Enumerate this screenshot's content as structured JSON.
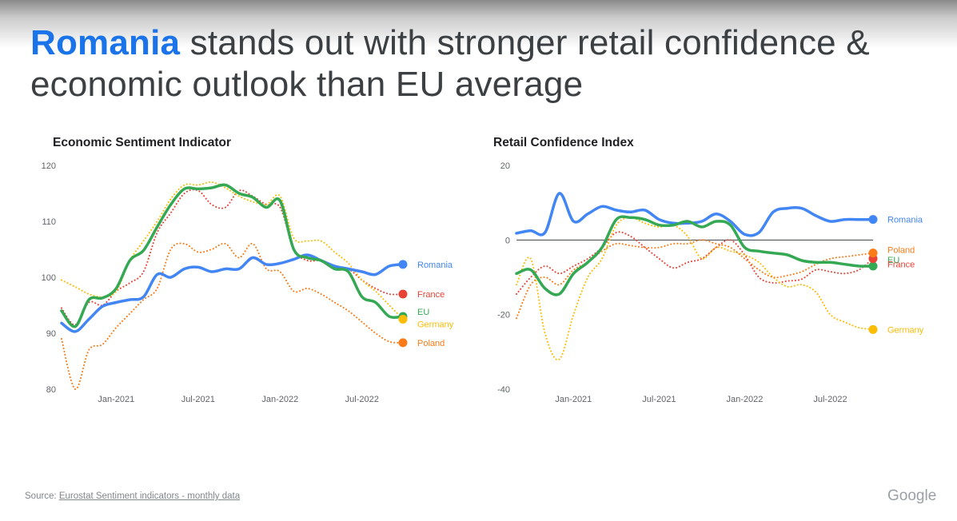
{
  "headline": {
    "accent": "Romania",
    "rest": " stands out with stronger retail confidence & economic outlook than EU average"
  },
  "footer": {
    "source_label": "Source: ",
    "source_link": "Eurostat Sentiment indicators - monthly data",
    "logo": "Google"
  },
  "chart_data": [
    {
      "type": "line",
      "title": "Economic Sentiment Indicator",
      "xlabel": "",
      "ylabel": "",
      "ylim": [
        80,
        120
      ],
      "yticks": [
        80,
        90,
        100,
        110,
        120
      ],
      "x": [
        "2020-09",
        "2020-10",
        "2020-11",
        "2020-12",
        "2021-01",
        "2021-02",
        "2021-03",
        "2021-04",
        "2021-05",
        "2021-06",
        "2021-07",
        "2021-08",
        "2021-09",
        "2021-10",
        "2021-11",
        "2021-12",
        "2022-01",
        "2022-02",
        "2022-03",
        "2022-04",
        "2022-05",
        "2022-06",
        "2022-07",
        "2022-08",
        "2022-09",
        "2022-10"
      ],
      "xtick_labels": [
        {
          "at": "2021-01",
          "label": "Jan-2021"
        },
        {
          "at": "2021-07",
          "label": "Jul-2021"
        },
        {
          "at": "2022-01",
          "label": "Jan-2022"
        },
        {
          "at": "2022-07",
          "label": "Jul-2022"
        }
      ],
      "series": [
        {
          "name": "Romania",
          "color": "#4285f4",
          "style": "solid",
          "values": [
            91.8,
            90.3,
            92.5,
            94.8,
            95.5,
            96.0,
            96.5,
            100.5,
            100.0,
            101.5,
            101.8,
            101.0,
            101.5,
            101.5,
            103.5,
            102.3,
            102.5,
            103.2,
            104.0,
            103.0,
            102.0,
            101.5,
            101.0,
            100.5,
            102.0,
            102.3
          ]
        },
        {
          "name": "EU",
          "color": "#34a853",
          "style": "solid",
          "values": [
            94.0,
            91.2,
            96.0,
            96.3,
            98.0,
            103.0,
            104.8,
            109.0,
            113.0,
            115.8,
            115.8,
            116.0,
            116.5,
            115.0,
            114.3,
            112.5,
            113.7,
            105.0,
            103.5,
            103.0,
            101.5,
            101.0,
            96.5,
            95.5,
            93.0,
            93.0
          ]
        },
        {
          "name": "France",
          "color": "#ea4335",
          "style": "dotted",
          "values": [
            94.5,
            91.5,
            95.5,
            95.0,
            97.5,
            99.0,
            101.0,
            108.0,
            111.5,
            115.0,
            115.5,
            113.0,
            112.5,
            115.5,
            114.5,
            113.0,
            112.5,
            105.0,
            103.0,
            103.0,
            102.0,
            101.5,
            99.5,
            98.0,
            97.0,
            97.0
          ]
        },
        {
          "name": "Germany",
          "color": "#fbbc04",
          "style": "dotted",
          "values": [
            99.5,
            98.3,
            97.0,
            96.5,
            97.5,
            103.0,
            106.5,
            110.0,
            114.0,
            116.5,
            116.5,
            117.0,
            116.0,
            114.5,
            113.5,
            113.0,
            114.5,
            107.0,
            106.5,
            106.5,
            104.5,
            102.5,
            99.5,
            97.5,
            95.0,
            92.5
          ]
        },
        {
          "name": "Poland",
          "color": "#fa7b17",
          "style": "dotted",
          "values": [
            89.0,
            80.0,
            87.0,
            88.0,
            91.0,
            93.5,
            96.0,
            98.0,
            105.0,
            106.0,
            104.5,
            105.0,
            106.0,
            103.5,
            106.0,
            101.5,
            101.0,
            97.5,
            98.0,
            97.0,
            95.5,
            94.0,
            92.0,
            90.0,
            88.5,
            88.3
          ]
        }
      ],
      "legend_placement": "right-end labels",
      "grid": false
    },
    {
      "type": "line",
      "title": "Retail Confidence Index",
      "xlabel": "",
      "ylabel": "",
      "ylim": [
        -40,
        20
      ],
      "yticks": [
        -40,
        -20,
        0,
        20
      ],
      "x": [
        "2020-09",
        "2020-10",
        "2020-11",
        "2020-12",
        "2021-01",
        "2021-02",
        "2021-03",
        "2021-04",
        "2021-05",
        "2021-06",
        "2021-07",
        "2021-08",
        "2021-09",
        "2021-10",
        "2021-11",
        "2021-12",
        "2022-01",
        "2022-02",
        "2022-03",
        "2022-04",
        "2022-05",
        "2022-06",
        "2022-07",
        "2022-08",
        "2022-09",
        "2022-10"
      ],
      "xtick_labels": [
        {
          "at": "2021-01",
          "label": "Jan-2021"
        },
        {
          "at": "2021-07",
          "label": "Jul-2021"
        },
        {
          "at": "2022-01",
          "label": "Jan-2022"
        },
        {
          "at": "2022-07",
          "label": "Jul-2022"
        }
      ],
      "series": [
        {
          "name": "Romania",
          "color": "#4285f4",
          "style": "solid",
          "values": [
            1.8,
            2.5,
            2.0,
            12.5,
            5.0,
            7.0,
            9.0,
            8.0,
            7.5,
            8.0,
            5.5,
            4.5,
            4.5,
            5.0,
            7.0,
            5.0,
            1.5,
            2.0,
            7.5,
            8.5,
            8.5,
            6.5,
            5.0,
            5.5,
            5.5,
            5.5
          ]
        },
        {
          "name": "EU",
          "color": "#34a853",
          "style": "solid",
          "values": [
            -9.0,
            -8.0,
            -13.0,
            -14.5,
            -9.0,
            -6.0,
            -2.0,
            5.5,
            6.0,
            5.5,
            4.0,
            4.0,
            5.0,
            3.5,
            5.0,
            4.0,
            -2.0,
            -3.0,
            -3.5,
            -4.0,
            -5.5,
            -6.0,
            -6.0,
            -6.5,
            -7.0,
            -7.0
          ]
        },
        {
          "name": "France",
          "color": "#ea4335",
          "style": "dotted",
          "values": [
            -14.5,
            -10.0,
            -7.0,
            -9.0,
            -7.0,
            -5.0,
            -2.0,
            2.0,
            1.0,
            -2.0,
            -5.0,
            -7.5,
            -6.0,
            -5.0,
            -2.0,
            0.0,
            -4.0,
            -10.0,
            -11.5,
            -11.0,
            -10.5,
            -8.0,
            -8.5,
            -9.0,
            -8.0,
            -5.0
          ]
        },
        {
          "name": "Germany",
          "color": "#fbbc04",
          "style": "dotted",
          "values": [
            -12.0,
            -5.0,
            -25.0,
            -32.0,
            -20.0,
            -10.0,
            -5.0,
            4.0,
            6.0,
            4.5,
            3.5,
            4.0,
            1.0,
            -5.0,
            -2.0,
            -3.0,
            -4.0,
            -6.0,
            -10.0,
            -12.5,
            -12.0,
            -14.0,
            -20.0,
            -22.0,
            -23.5,
            -24.0
          ]
        },
        {
          "name": "Poland",
          "color": "#fa7b17",
          "style": "dotted",
          "values": [
            -21.0,
            -12.0,
            -10.0,
            -12.0,
            -8.0,
            -6.0,
            -3.0,
            -1.0,
            -1.5,
            -2.0,
            -2.0,
            -1.0,
            -1.0,
            0.0,
            -1.0,
            -2.0,
            -5.0,
            -8.0,
            -10.0,
            -9.5,
            -8.5,
            -6.5,
            -5.0,
            -4.5,
            -4.0,
            -3.5
          ]
        }
      ],
      "legend_placement": "right-end labels",
      "grid": false,
      "zero_line": true
    }
  ]
}
